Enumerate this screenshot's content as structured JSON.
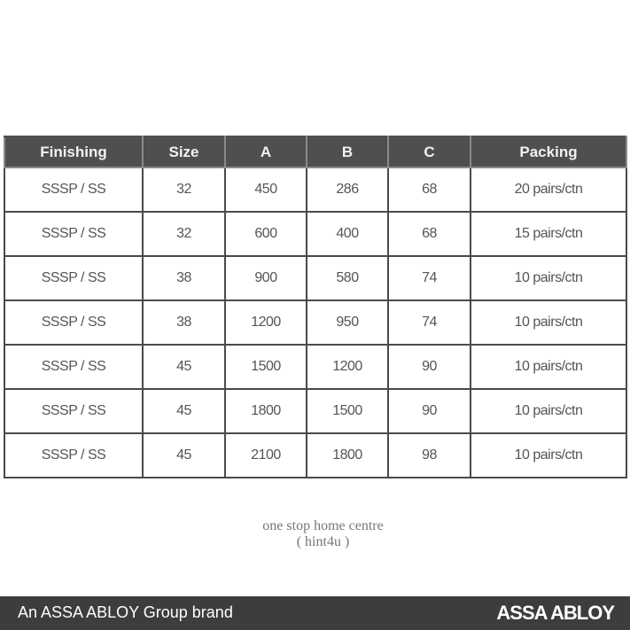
{
  "table": {
    "headers": [
      "Finishing",
      "Size",
      "A",
      "B",
      "C",
      "Packing"
    ],
    "rows": [
      [
        "SSSP / SS",
        "32",
        "450",
        "286",
        "68",
        "20 pairs/ctn"
      ],
      [
        "SSSP / SS",
        "32",
        "600",
        "400",
        "68",
        "15 pairs/ctn"
      ],
      [
        "SSSP / SS",
        "38",
        "900",
        "580",
        "74",
        "10 pairs/ctn"
      ],
      [
        "SSSP / SS",
        "38",
        "1200",
        "950",
        "74",
        "10 pairs/ctn"
      ],
      [
        "SSSP / SS",
        "45",
        "1500",
        "1200",
        "90",
        "10 pairs/ctn"
      ],
      [
        "SSSP / SS",
        "45",
        "1800",
        "1500",
        "90",
        "10 pairs/ctn"
      ],
      [
        "SSSP / SS",
        "45",
        "2100",
        "1800",
        "98",
        "10 pairs/ctn"
      ]
    ]
  },
  "watermark": {
    "line1": "one stop home centre",
    "line2": "( hint4u )"
  },
  "footer": {
    "brand_text": "An ASSA ABLOY Group brand",
    "logo_text": "ASSA ABLOY"
  },
  "colors": {
    "header_bg": "#4f4f4f",
    "footer_bg": "#3d3d3d"
  }
}
